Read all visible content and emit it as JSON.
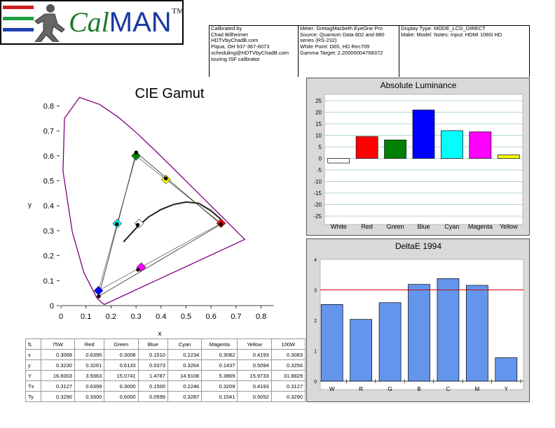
{
  "header": {
    "logo": {
      "text_cal": "Cal",
      "text_man": "MAN",
      "tm": "™"
    },
    "calibrated_by": [
      "Calibrated by",
      "Chad Billheimer",
      "HDTVbyChadB.com",
      "Piqua, OH 937-367-6073",
      "scheduling@HDTVbyChadB.com",
      "touring ISF calibrator"
    ],
    "meter": [
      "Meter: GretagMacbeth EyeOne Pro",
      "Source: Quantum Data 802 and 880",
      "series (RS-232)",
      "White Point: D65, HD Rec709",
      "Gamma Target: 2.20000004768372"
    ],
    "display": [
      "Display Type: MODE_LCD_DIRECT",
      "Make: Model: Notes: Input: HDMI 1080i HD"
    ]
  },
  "cie": {
    "title": "CIE Gamut",
    "xlabel": "x",
    "ylabel": "y",
    "xticks": [
      "0",
      "0.1",
      "0.2",
      "0.3",
      "0.4",
      "0.5",
      "0.6",
      "0.7",
      "0.8"
    ],
    "yticks": [
      "0",
      "0.1",
      "0.2",
      "0.3",
      "0.4",
      "0.5",
      "0.6",
      "0.7",
      "0.8"
    ]
  },
  "luminance": {
    "title": "Absolute Luminance",
    "categories": [
      "White",
      "Red",
      "Green",
      "Blue",
      "Cyan",
      "Magenta",
      "Yellow"
    ],
    "yticks": [
      "25",
      "20",
      "15",
      "10",
      "5",
      "0",
      "-5",
      "-10",
      "-15",
      "-20",
      "-25"
    ]
  },
  "deltae": {
    "title": "DeltaE 1994",
    "categories": [
      "W",
      "R",
      "G",
      "B",
      "C",
      "M",
      "Y"
    ],
    "yticks": [
      "4",
      "3",
      "2",
      "1",
      "0"
    ]
  },
  "table": {
    "headers": [
      "fL",
      "75W",
      "Red",
      "Green",
      "Blue",
      "Cyan",
      "Magenta",
      "Yellow",
      "100W"
    ],
    "rows": [
      [
        "x",
        "0.3068",
        "0.6395",
        "0.3008",
        "0.1510",
        "0.2234",
        "0.3082",
        "0.4193",
        "0.3083"
      ],
      [
        "y",
        "0.3230",
        "0.3261",
        "0.6133",
        "0.0373",
        "0.3264",
        "0.1437",
        "0.5094",
        "0.3256"
      ],
      [
        "Y",
        "16.6003",
        "3.9363",
        "15.0741",
        "1.4787",
        "14.9108",
        "5.3869",
        "15.9733",
        "31.8829"
      ],
      [
        "Tx",
        "0.3127",
        "0.6399",
        "0.3000",
        "0.1500",
        "0.2246",
        "0.3209",
        "0.4193",
        "0.3127"
      ],
      [
        "Ty",
        "0.3290",
        "0.3300",
        "0.6000",
        "0.0599",
        "0.3287",
        "0.1541",
        "0.5052",
        "0.3290"
      ]
    ]
  },
  "colors": {
    "locus": "#800080",
    "grid": "#9ec9c9",
    "panel_bg": "#d9d9d9",
    "deltae_bar": "#6495ed",
    "threshold": "#cc0000"
  },
  "chart_data": [
    {
      "type": "scatter",
      "title": "CIE Gamut",
      "xlabel": "x",
      "ylabel": "y",
      "xlim": [
        0,
        0.85
      ],
      "ylim": [
        0,
        0.85
      ],
      "series": [
        {
          "x": [
            0.6395,
            0.3008,
            0.151,
            0.2234,
            0.3082,
            0.4193,
            0.3068
          ],
          "y": [
            0.3261,
            0.6133,
            0.0373,
            0.3264,
            0.1437,
            0.5094,
            0.323
          ]
        },
        {
          "x": [
            0.6399,
            0.3,
            0.15,
            0.2246,
            0.3209,
            0.4193,
            0.3127
          ],
          "y": [
            0.33,
            0.6,
            0.0599,
            0.3287,
            0.1541,
            0.5052,
            0.329
          ]
        }
      ],
      "point_colors": [
        "#ff0000",
        "#008000",
        "#0000ff",
        "#00ffff",
        "#ff00ff",
        "#ffff00",
        "#ffffff"
      ],
      "planckian_locus": {
        "x": [
          0.25,
          0.3,
          0.35,
          0.4,
          0.45,
          0.5,
          0.55,
          0.6,
          0.64
        ],
        "y": [
          0.255,
          0.31,
          0.355,
          0.385,
          0.405,
          0.415,
          0.41,
          0.38,
          0.345
        ]
      },
      "spectral_locus": {
        "x": [
          0.1741,
          0.173,
          0.1666,
          0.144,
          0.0913,
          0.0454,
          0.0082,
          0.0139,
          0.0743,
          0.1547,
          0.2296,
          0.3016,
          0.3731,
          0.4441,
          0.5125,
          0.5752,
          0.627,
          0.6658,
          0.6915,
          0.7079,
          0.7347
        ],
        "y": [
          0.005,
          0.0048,
          0.0089,
          0.0297,
          0.1327,
          0.295,
          0.5384,
          0.7502,
          0.8338,
          0.8059,
          0.7543,
          0.6923,
          0.6245,
          0.5547,
          0.4866,
          0.4242,
          0.3725,
          0.334,
          0.3083,
          0.292,
          0.2653
        ]
      }
    },
    {
      "type": "bar",
      "title": "Absolute Luminance",
      "categories": [
        "White",
        "Red",
        "Green",
        "Blue",
        "Cyan",
        "Magenta",
        "Yellow"
      ],
      "values": [
        -2,
        9.5,
        8,
        21,
        12,
        11.5,
        1.5
      ],
      "colors": [
        "#ffffff",
        "#ff0000",
        "#008000",
        "#0000ff",
        "#00ffff",
        "#ff00ff",
        "#ffff00"
      ],
      "ylim": [
        -25,
        25
      ],
      "grid": true
    },
    {
      "type": "bar",
      "title": "DeltaE 1994",
      "categories": [
        "W",
        "R",
        "G",
        "B",
        "C",
        "M",
        "Y"
      ],
      "values": [
        2.52,
        2.03,
        2.58,
        3.18,
        3.37,
        3.15,
        0.77
      ],
      "ylim": [
        0,
        4
      ],
      "reference_line": 3,
      "grid": false
    }
  ]
}
